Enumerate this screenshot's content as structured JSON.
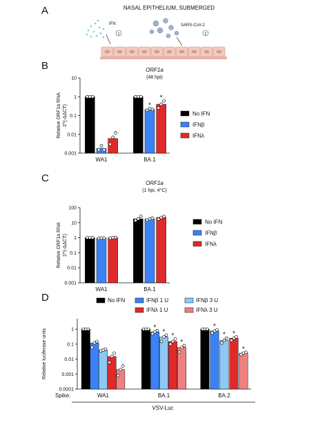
{
  "panel_a": {
    "letter": "A",
    "title": "NASAL EPITHELIUM, SUBMERGED",
    "ifn_label": "IFN",
    "ifn_step": "1",
    "virus_label": "SARS-CoV-2",
    "virus_step": "2"
  },
  "colors": {
    "no_ifn": "#000000",
    "ifnb": "#3b82f6",
    "ifnl": "#e02a2a",
    "ifnb3": "#8ec8f4",
    "ifnl3": "#ee8080",
    "dot_fill": "#ffffff"
  },
  "chart_data": [
    {
      "id": "B",
      "letter": "B",
      "type": "bar",
      "title": "ORF1a",
      "subtitle": "(48 hpi)",
      "ylabel": [
        "Relative ORF1a RNA",
        "2^(-ΔΔCT)"
      ],
      "yscale": "log",
      "ylim": [
        0.001,
        10
      ],
      "yticks": [
        {
          "v": 10,
          "label": "10"
        },
        {
          "v": 1,
          "label": "1"
        },
        {
          "v": 0.1,
          "label": "0.1"
        },
        {
          "v": 0.01,
          "label": "0.01"
        },
        {
          "v": 0.001,
          "label": "0.001"
        }
      ],
      "categories": [
        "WA1",
        "BA.1"
      ],
      "series": [
        {
          "name": "No IFN",
          "color_key": "no_ifn",
          "values": [
            1,
            1
          ],
          "points": [
            [
              1,
              1,
              1
            ],
            [
              1,
              1,
              1
            ]
          ],
          "stars": [
            false,
            false
          ]
        },
        {
          "name": "IFNβ",
          "color_key": "ifnb",
          "values": [
            0.0018,
            0.21
          ],
          "points": [
            [
              0.0015,
              0.0025,
              0.0015
            ],
            [
              0.19,
              0.23,
              0.21
            ]
          ],
          "stars": [
            false,
            true
          ]
        },
        {
          "name": "IFNλ",
          "color_key": "ifnl",
          "values": [
            0.006,
            0.4
          ],
          "points": [
            [
              0.003,
              0.007,
              0.012
            ],
            [
              0.25,
              0.4,
              0.6
            ]
          ],
          "stars": [
            false,
            true
          ]
        }
      ],
      "legend": {
        "position": "right"
      }
    },
    {
      "id": "C",
      "letter": "C",
      "type": "bar",
      "title": "ORF1a",
      "subtitle": "(1 hpi, 4°C)",
      "ylabel": [
        "Relative ORF1a RNA",
        "2^(-ΔΔCT)"
      ],
      "yscale": "log",
      "ylim": [
        0.001,
        100
      ],
      "yticks": [
        {
          "v": 100,
          "label": "100"
        },
        {
          "v": 10,
          "label": "10"
        },
        {
          "v": 1,
          "label": "1"
        },
        {
          "v": 0.1,
          "label": "0.1"
        },
        {
          "v": 0.01,
          "label": "0.01"
        },
        {
          "v": 0.001,
          "label": "0.001"
        }
      ],
      "categories": [
        "WA1",
        "BA.1"
      ],
      "series": [
        {
          "name": "No IFN",
          "color_key": "no_ifn",
          "values": [
            1,
            18
          ],
          "points": [
            [
              1,
              1,
              1
            ],
            [
              14,
              18,
              26
            ]
          ],
          "stars": [
            false,
            false
          ]
        },
        {
          "name": "IFNβ",
          "color_key": "ifnb",
          "values": [
            0.95,
            18
          ],
          "points": [
            [
              0.9,
              0.95,
              0.95
            ],
            [
              15,
              18,
              20
            ]
          ],
          "stars": [
            false,
            false
          ]
        },
        {
          "name": "IFNλ",
          "color_key": "ifnl",
          "values": [
            1,
            22
          ],
          "points": [
            [
              0.95,
              1,
              1.05
            ],
            [
              17,
              22,
              26
            ]
          ],
          "stars": [
            false,
            false
          ]
        }
      ],
      "legend": {
        "position": "right"
      }
    },
    {
      "id": "D",
      "letter": "D",
      "type": "bar",
      "title": "",
      "subtitle": "",
      "ylabel": [
        "Relative luciferase units"
      ],
      "yscale": "log",
      "ylim": [
        0.0001,
        5
      ],
      "yticks": [
        {
          "v": 1,
          "label": "1"
        },
        {
          "v": 0.1,
          "label": "0.1"
        },
        {
          "v": 0.01,
          "label": "0.01"
        },
        {
          "v": 0.001,
          "label": "0.001"
        },
        {
          "v": 0.0001,
          "label": "0.0001"
        }
      ],
      "categories": [
        "WA1",
        "BA.1",
        "BA.2"
      ],
      "xprefix": "Spike:",
      "xgroup_label": "VSV-Luc",
      "series": [
        {
          "name": "No IFN",
          "color_key": "no_ifn",
          "values": [
            1,
            1,
            1
          ],
          "points": [
            [
              1,
              1,
              1
            ],
            [
              1,
              1,
              1
            ],
            [
              1,
              1,
              1
            ]
          ],
          "stars": [
            false,
            false,
            false
          ]
        },
        {
          "name": "IFNβ 1 U",
          "color_key": "ifnb",
          "values": [
            0.12,
            0.65,
            0.75
          ],
          "points": [
            [
              0.06,
              0.12,
              0.15
            ],
            [
              0.5,
              0.65,
              0.8
            ],
            [
              0.55,
              0.75,
              0.9
            ]
          ],
          "stars": [
            false,
            true,
            true
          ]
        },
        {
          "name": "IFNβ 3 U",
          "color_key": "ifnb3",
          "values": [
            0.04,
            0.3,
            0.18
          ],
          "points": [
            [
              0.035,
              0.04,
              0.045
            ],
            [
              0.15,
              0.3,
              0.4
            ],
            [
              0.12,
              0.18,
              0.25
            ]
          ],
          "stars": [
            false,
            true,
            true
          ]
        },
        {
          "name": "IFNλ 1 U",
          "color_key": "ifnl",
          "values": [
            0.015,
            0.15,
            0.25
          ],
          "points": [
            [
              0.006,
              0.015,
              0.025
            ],
            [
              0.1,
              0.15,
              0.22
            ],
            [
              0.18,
              0.25,
              0.3
            ]
          ],
          "stars": [
            false,
            true,
            true
          ]
        },
        {
          "name": "IFNλ 3 U",
          "color_key": "ifnl3",
          "values": [
            0.002,
            0.06,
            0.025
          ],
          "points": [
            [
              0.0008,
              0.002,
              0.0035
            ],
            [
              0.03,
              0.06,
              0.08
            ],
            [
              0.02,
              0.025,
              0.028
            ]
          ],
          "stars": [
            false,
            true,
            true
          ]
        }
      ],
      "legend": {
        "position": "top"
      }
    }
  ],
  "star_symbol": "*"
}
